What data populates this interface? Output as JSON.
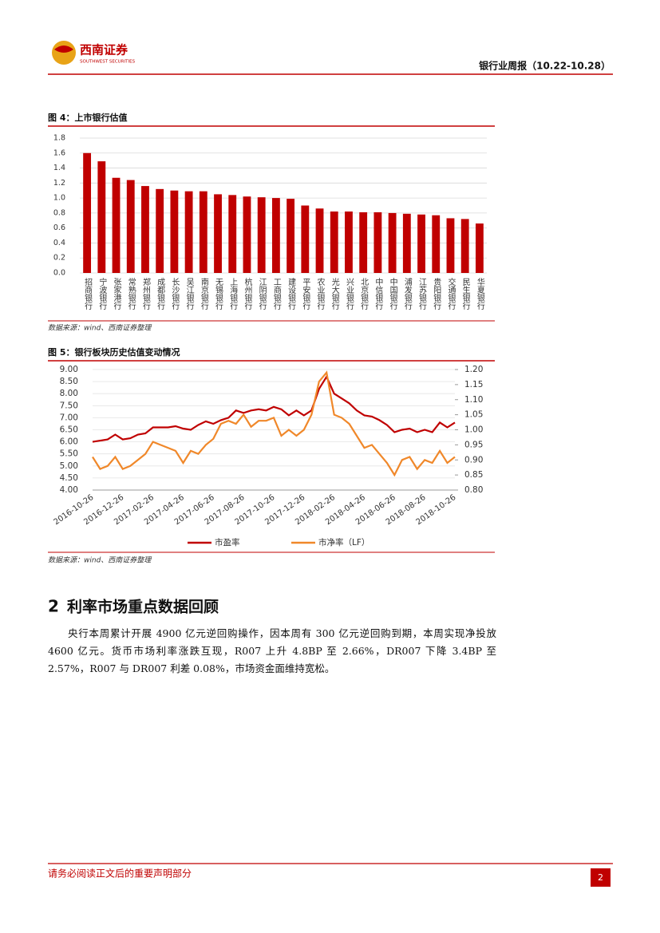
{
  "header": {
    "logo_cn": "西南证券",
    "logo_en": "SOUTHWEST SECURITIES",
    "report": "银行业周报（10.22-10.28）"
  },
  "figures": [
    {
      "title": "图 4：上市银行估值",
      "source": "数据来源：wind、西南证券整理"
    },
    {
      "title": "图 5：银行板块历史估值变动情况",
      "source": "数据来源：wind、西南证券整理"
    }
  ],
  "chart_data": [
    {
      "type": "bar",
      "color": "#c00000",
      "grid": true,
      "categories": [
        "招商银行",
        "宁波银行",
        "张家港行",
        "常熟银行",
        "郑州银行",
        "成都银行",
        "长沙银行",
        "吴江银行",
        "南京银行",
        "无锡银行",
        "上海银行",
        "杭州银行",
        "江阴银行",
        "工商银行",
        "建设银行",
        "平安银行",
        "农业银行",
        "光大银行",
        "兴业银行",
        "北京银行",
        "中信银行",
        "中国银行",
        "浦发银行",
        "江苏银行",
        "贵阳银行",
        "交通银行",
        "民生银行",
        "华夏银行"
      ],
      "values": [
        1.6,
        1.49,
        1.27,
        1.24,
        1.16,
        1.12,
        1.1,
        1.09,
        1.09,
        1.05,
        1.04,
        1.02,
        1.01,
        1.0,
        0.99,
        0.9,
        0.86,
        0.82,
        0.82,
        0.81,
        0.81,
        0.8,
        0.79,
        0.78,
        0.77,
        0.73,
        0.72,
        0.66
      ],
      "ylim": [
        0,
        1.8
      ],
      "yticks": [
        {
          "value": 0,
          "label": "0.0"
        },
        0.2,
        0.4,
        0.6,
        0.8,
        {
          "value": 1,
          "label": "1.0"
        },
        1.2,
        1.4,
        1.6,
        1.8
      ]
    },
    {
      "type": "line",
      "grid": true,
      "legend": "bottom",
      "categories": [
        "2016-10-26",
        null,
        null,
        null,
        "2016-12-26",
        null,
        null,
        null,
        "2017-02-26",
        null,
        null,
        null,
        "2017-04-26",
        null,
        null,
        null,
        "2017-06-26",
        null,
        null,
        null,
        "2017-08-26",
        null,
        null,
        null,
        "2017-10-26",
        null,
        null,
        null,
        "2017-12-26",
        null,
        null,
        null,
        "2018-02-26",
        null,
        null,
        null,
        "2018-04-26",
        null,
        null,
        null,
        "2018-06-26",
        null,
        null,
        null,
        "2018-08-26",
        null,
        null,
        null,
        "2018-10-26"
      ],
      "series": [
        {
          "name": "市盈率",
          "color": "#c00000",
          "values": [
            6.0,
            6.05,
            6.1,
            6.3,
            6.1,
            6.15,
            6.3,
            6.35,
            6.6,
            6.6,
            6.6,
            6.65,
            6.55,
            6.5,
            6.7,
            6.85,
            6.75,
            6.9,
            7.0,
            7.3,
            7.2,
            7.3,
            7.35,
            7.3,
            7.45,
            7.35,
            7.1,
            7.3,
            7.1,
            7.3,
            8.2,
            8.7,
            8.0,
            7.8,
            7.6,
            7.3,
            7.1,
            7.05,
            6.9,
            6.7,
            6.4,
            6.5,
            6.55,
            6.4,
            6.5,
            6.4,
            6.8,
            6.6,
            6.8
          ]
        },
        {
          "name": "市净率（LF）",
          "color": "#f0882a",
          "axis": "y2",
          "values": [
            0.91,
            0.87,
            0.88,
            0.91,
            0.87,
            0.88,
            0.9,
            0.92,
            0.96,
            0.95,
            0.94,
            0.93,
            0.89,
            0.93,
            0.92,
            0.95,
            0.97,
            1.02,
            1.03,
            1.02,
            1.05,
            1.01,
            1.03,
            1.03,
            1.04,
            0.98,
            1.0,
            0.98,
            1.0,
            1.05,
            1.16,
            1.19,
            1.05,
            1.04,
            1.02,
            0.98,
            0.94,
            0.95,
            0.92,
            0.89,
            0.85,
            0.9,
            0.91,
            0.87,
            0.9,
            0.89,
            0.93,
            0.89,
            0.91
          ]
        }
      ],
      "ylim": [
        4,
        9
      ],
      "yticks": [
        {
          "value": 4,
          "label": "4.00"
        },
        {
          "value": 4.5,
          "label": "4.50"
        },
        {
          "value": 5,
          "label": "5.00"
        },
        {
          "value": 5.5,
          "label": "5.50"
        },
        {
          "value": 6,
          "label": "6.00"
        },
        {
          "value": 6.5,
          "label": "6.50"
        },
        {
          "value": 7,
          "label": "7.00"
        },
        {
          "value": 7.5,
          "label": "7.50"
        },
        {
          "value": 8,
          "label": "8.00"
        },
        {
          "value": 8.5,
          "label": "8.50"
        },
        {
          "value": 9,
          "label": "9.00"
        }
      ],
      "y2lim": [
        0.8,
        1.2
      ],
      "y2ticks": [
        {
          "value": 0.8,
          "label": "0.80"
        },
        {
          "value": 0.85,
          "label": "0.85"
        },
        {
          "value": 0.9,
          "label": "0.90"
        },
        {
          "value": 0.95,
          "label": "0.95"
        },
        {
          "value": 1,
          "label": "1.00"
        },
        {
          "value": 1.05,
          "label": "1.05"
        },
        {
          "value": 1.1,
          "label": "1.10"
        },
        {
          "value": 1.15,
          "label": "1.15"
        },
        {
          "value": 1.2,
          "label": "1.20"
        }
      ]
    }
  ],
  "section": {
    "number": "2",
    "title": "利率市场重点数据回顾"
  },
  "paragraph": "央行本周累计开展 4900 亿元逆回购操作，因本周有 300 亿元逆回购到期，本周实现净投放 4600 亿元。货币市场利率涨跌互现，R007 上升 4.8BP 至 2.66%，DR007 下降 3.4BP 至 2.57%，R007 与 DR007 利差 0.08%，市场资金面维持宽松。",
  "footer": {
    "notice": "请务必阅读正文后的重要声明部分",
    "page": "2"
  }
}
